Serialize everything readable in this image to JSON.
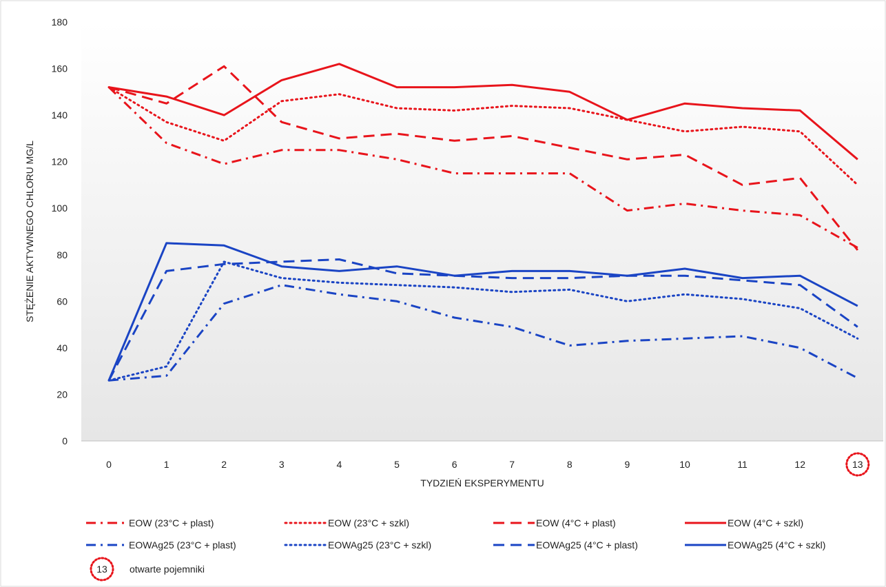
{
  "chart_data": {
    "type": "line",
    "title": "",
    "xlabel": "TYDZIEŃ EKSPERYMENTU",
    "ylabel": "STĘŻENIE  AKTYWNEGO CHLORU MG/L",
    "ylim": [
      0,
      180
    ],
    "yticks": [
      0,
      20,
      40,
      60,
      80,
      100,
      120,
      140,
      160,
      180
    ],
    "x": [
      0,
      1,
      2,
      3,
      4,
      5,
      6,
      7,
      8,
      9,
      10,
      11,
      12,
      13
    ],
    "x_tick_labels": [
      "0",
      "1",
      "2",
      "3",
      "4",
      "5",
      "6",
      "7",
      "8",
      "9",
      "10",
      "11",
      "12",
      "13"
    ],
    "highlighted_x_label": "13",
    "grid": false,
    "legend_position": "bottom",
    "series": [
      {
        "name": "EOW (23°C + plast)",
        "color": "#e8141b",
        "dash": "dashdot",
        "values": [
          152,
          128,
          119,
          125,
          125,
          121,
          115,
          115,
          115,
          99,
          102,
          99,
          97,
          83
        ]
      },
      {
        "name": "EOW (23°C + szkl)",
        "color": "#e8141b",
        "dash": "dot",
        "values": [
          152,
          137,
          129,
          146,
          149,
          143,
          142,
          144,
          143,
          138,
          133,
          135,
          133,
          110
        ]
      },
      {
        "name": "EOW (4°C + plast)",
        "color": "#e8141b",
        "dash": "dash",
        "values": [
          152,
          145,
          161,
          137,
          130,
          132,
          129,
          131,
          126,
          121,
          123,
          110,
          113,
          82
        ]
      },
      {
        "name": "EOW (4°C + szkl)",
        "color": "#e8141b",
        "dash": "solid",
        "values": [
          152,
          148,
          140,
          155,
          162,
          152,
          152,
          153,
          150,
          138,
          145,
          143,
          142,
          121
        ]
      },
      {
        "name": "EOWAg25 (23°C + plast)",
        "color": "#1a44c4",
        "dash": "dashdot",
        "values": [
          26,
          28,
          59,
          67,
          63,
          60,
          53,
          49,
          41,
          43,
          44,
          45,
          40,
          27
        ]
      },
      {
        "name": "EOWAg25 (23°C + szkl)",
        "color": "#1a44c4",
        "dash": "dot",
        "values": [
          26,
          32,
          77,
          70,
          68,
          67,
          66,
          64,
          65,
          60,
          63,
          61,
          57,
          44
        ]
      },
      {
        "name": "EOWAg25 (4°C + plast)",
        "color": "#1a44c4",
        "dash": "dash",
        "values": [
          26,
          73,
          76,
          77,
          78,
          72,
          71,
          70,
          70,
          71,
          71,
          69,
          67,
          49
        ]
      },
      {
        "name": "EOWAg25 (4°C + szkl)",
        "color": "#1a44c4",
        "dash": "solid",
        "values": [
          26,
          85,
          84,
          75,
          73,
          75,
          71,
          73,
          73,
          71,
          74,
          70,
          71,
          58
        ]
      }
    ],
    "annotation": {
      "marker_label": "13",
      "text": "otwarte pojemniki",
      "color": "#e8141b"
    }
  }
}
